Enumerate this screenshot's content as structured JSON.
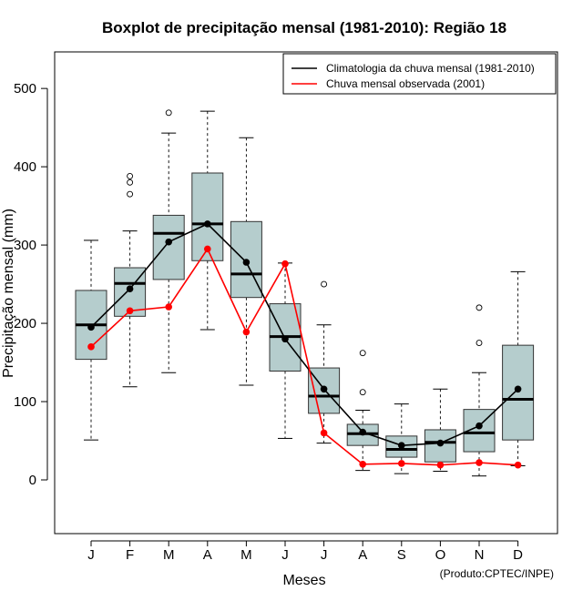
{
  "chart_data": {
    "type": "boxplot",
    "title": "Boxplot de precipitação mensal (1981-2010): Região 18",
    "xlabel": "Meses",
    "ylabel": "Precipitação mensal (mm)",
    "ylim": [
      -68,
      545
    ],
    "yticks": [
      0,
      100,
      200,
      300,
      400,
      500
    ],
    "grid": false,
    "legend_position": "top-right",
    "credit": "(Produto:CPTEC/INPE)",
    "categories": [
      "J",
      "F",
      "M",
      "A",
      "M",
      "J",
      "J",
      "A",
      "S",
      "O",
      "N",
      "D"
    ],
    "boxes": [
      {
        "whisker_low": 51,
        "q1": 154,
        "median": 198,
        "q3": 242,
        "whisker_high": 306,
        "outliers": []
      },
      {
        "whisker_low": 119,
        "q1": 209,
        "median": 251,
        "q3": 271,
        "whisker_high": 318,
        "outliers": [
          365,
          380,
          388
        ]
      },
      {
        "whisker_low": 137,
        "q1": 256,
        "median": 315,
        "q3": 338,
        "whisker_high": 443,
        "outliers": [
          469
        ]
      },
      {
        "whisker_low": 192,
        "q1": 280,
        "median": 327,
        "q3": 392,
        "whisker_high": 471,
        "outliers": []
      },
      {
        "whisker_low": 121,
        "q1": 233,
        "median": 263,
        "q3": 330,
        "whisker_high": 437,
        "outliers": []
      },
      {
        "whisker_low": 53,
        "q1": 139,
        "median": 183,
        "q3": 225,
        "whisker_high": 277,
        "outliers": []
      },
      {
        "whisker_low": 47,
        "q1": 85,
        "median": 107,
        "q3": 143,
        "whisker_high": 198,
        "outliers": [
          250
        ]
      },
      {
        "whisker_low": 12,
        "q1": 44,
        "median": 59,
        "q3": 71,
        "whisker_high": 89,
        "outliers": [
          112,
          162
        ]
      },
      {
        "whisker_low": 8,
        "q1": 29,
        "median": 39,
        "q3": 56,
        "whisker_high": 97,
        "outliers": []
      },
      {
        "whisker_low": 11,
        "q1": 23,
        "median": 48,
        "q3": 64,
        "whisker_high": 116,
        "outliers": []
      },
      {
        "whisker_low": 5,
        "q1": 36,
        "median": 60,
        "q3": 90,
        "whisker_high": 137,
        "outliers": [
          175,
          220
        ]
      },
      {
        "whisker_low": 18,
        "q1": 51,
        "median": 103,
        "q3": 172,
        "whisker_high": 266,
        "outliers": []
      }
    ],
    "series": [
      {
        "name": "Climatologia da chuva mensal (1981-2010)",
        "color": "#000000",
        "values": [
          195,
          244,
          304,
          327,
          278,
          180,
          116,
          61,
          44,
          47,
          69,
          116
        ]
      },
      {
        "name": "Chuva mensal observada (2001)",
        "color": "#ff0000",
        "values": [
          170,
          216,
          221,
          295,
          189,
          276,
          60,
          20,
          21,
          19,
          22,
          19
        ]
      }
    ],
    "box_fill": "#b5cdcd"
  }
}
